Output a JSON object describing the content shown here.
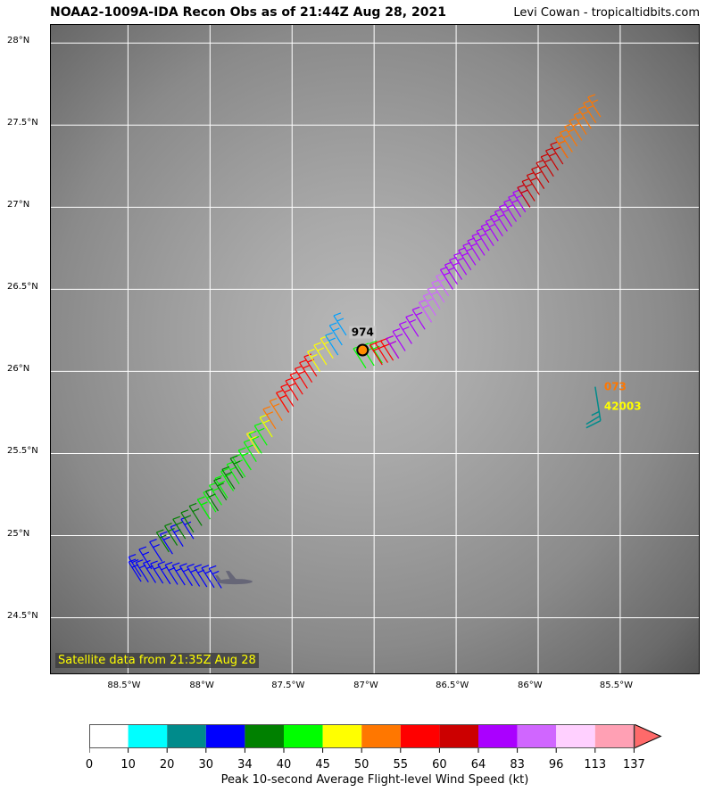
{
  "title": "NOAA2-1009A-IDA Recon Obs as of 21:44Z Aug 28, 2021",
  "credit": "Levi Cowan - tropicaltidbits.com",
  "satellite_label": "Satellite data from 21:35Z Aug 28",
  "map": {
    "lon_range": [
      -88.97,
      -85.01
    ],
    "lat_range": [
      24.15,
      28.11
    ],
    "lon_ticks": [
      {
        "v": -88.5,
        "label": "88.5°W"
      },
      {
        "v": -88,
        "label": "88°W"
      },
      {
        "v": -87.5,
        "label": "87.5°W"
      },
      {
        "v": -87,
        "label": "87°W"
      },
      {
        "v": -86.5,
        "label": "86.5°W"
      },
      {
        "v": -86,
        "label": "86°W"
      },
      {
        "v": -85.5,
        "label": "85.5°W"
      }
    ],
    "lat_ticks": [
      {
        "v": 28,
        "label": "28°N"
      },
      {
        "v": 27.5,
        "label": "27.5°N"
      },
      {
        "v": 27,
        "label": "27°N"
      },
      {
        "v": 26.5,
        "label": "26.5°N"
      },
      {
        "v": 26,
        "label": "26°N"
      },
      {
        "v": 25.5,
        "label": "25.5°N"
      },
      {
        "v": 25,
        "label": "25°N"
      },
      {
        "v": 24.5,
        "label": "24.5°N"
      }
    ]
  },
  "center": {
    "lat": 26.13,
    "lon": -87.07,
    "pressure_label": "974"
  },
  "buoy": {
    "id": "42003",
    "value": "073",
    "lat": 25.7,
    "lon": -85.62,
    "id_color": "#ffff00",
    "value_color": "#ff7700"
  },
  "aircraft": {
    "lat": 24.72,
    "lon": -87.85
  },
  "track_legs": [
    {
      "from": [
        24.72,
        -88.42
      ],
      "to": [
        24.68,
        -87.93
      ],
      "color": "#0000ff",
      "n": 12
    },
    {
      "from": [
        24.75,
        -88.42
      ],
      "to": [
        24.98,
        -88.1
      ],
      "color": "#0000ff",
      "n": 6
    },
    {
      "from": [
        24.9,
        -88.25
      ],
      "to": [
        25.1,
        -88.0
      ],
      "color": "#008000",
      "n": 6
    },
    {
      "from": [
        25.1,
        -88.0
      ],
      "to": [
        25.4,
        -87.75
      ],
      "color": "#00ff00",
      "n": 8
    },
    {
      "from": [
        25.15,
        -87.95
      ],
      "to": [
        25.35,
        -87.8
      ],
      "color": "#008000",
      "n": 4
    },
    {
      "from": [
        25.4,
        -87.75
      ],
      "to": [
        25.6,
        -87.62
      ],
      "color": "#00ff00",
      "n": 5
    },
    {
      "from": [
        25.5,
        -87.7
      ],
      "to": [
        25.6,
        -87.62
      ],
      "color": "#ffff00",
      "n": 2
    },
    {
      "from": [
        25.65,
        -87.6
      ],
      "to": [
        25.75,
        -87.52
      ],
      "color": "#ff7700",
      "n": 3
    },
    {
      "from": [
        25.75,
        -87.52
      ],
      "to": [
        25.97,
        -87.35
      ],
      "color": "#ff0000",
      "n": 7
    },
    {
      "from": [
        26.0,
        -87.33
      ],
      "to": [
        26.08,
        -87.25
      ],
      "color": "#ffff00",
      "n": 3
    },
    {
      "from": [
        26.1,
        -87.22
      ],
      "to": [
        26.22,
        -87.17
      ],
      "color": "#00a0ff",
      "n": 3
    },
    {
      "from": [
        26.02,
        -87.05
      ],
      "to": [
        26.05,
        -86.95
      ],
      "color": "#00ff00",
      "n": 3
    },
    {
      "from": [
        26.04,
        -86.95
      ],
      "to": [
        26.08,
        -86.85
      ],
      "color": "#ff0000",
      "n": 4
    },
    {
      "from": [
        26.08,
        -86.85
      ],
      "to": [
        26.3,
        -86.65
      ],
      "color": "#aa00ff",
      "n": 6
    },
    {
      "from": [
        26.3,
        -86.65
      ],
      "to": [
        26.5,
        -86.52
      ],
      "color": "#d066ff",
      "n": 6
    },
    {
      "from": [
        26.5,
        -86.52
      ],
      "to": [
        27.0,
        -86.05
      ],
      "color": "#aa00ff",
      "n": 18
    },
    {
      "from": [
        27.0,
        -86.05
      ],
      "to": [
        27.3,
        -85.82
      ],
      "color": "#cc0000",
      "n": 9
    },
    {
      "from": [
        27.3,
        -85.82
      ],
      "to": [
        27.55,
        -85.62
      ],
      "color": "#ff7700",
      "n": 8
    }
  ],
  "colorbar": {
    "title": "Peak 10-second Average Flight-level Wind Speed (kt)",
    "labels": [
      "0",
      "10",
      "20",
      "30",
      "34",
      "40",
      "45",
      "50",
      "55",
      "60",
      "64",
      "83",
      "96",
      "113",
      "137"
    ],
    "colors": [
      "#ffffff",
      "#00ffff",
      "#008b8b",
      "#0000ff",
      "#008000",
      "#00ff00",
      "#ffff00",
      "#ff7700",
      "#ff0000",
      "#cc0000",
      "#aa00ff",
      "#d066ff",
      "#ffd0ff",
      "#ffa0b4"
    ],
    "extend_color": "#ff6a6a"
  }
}
